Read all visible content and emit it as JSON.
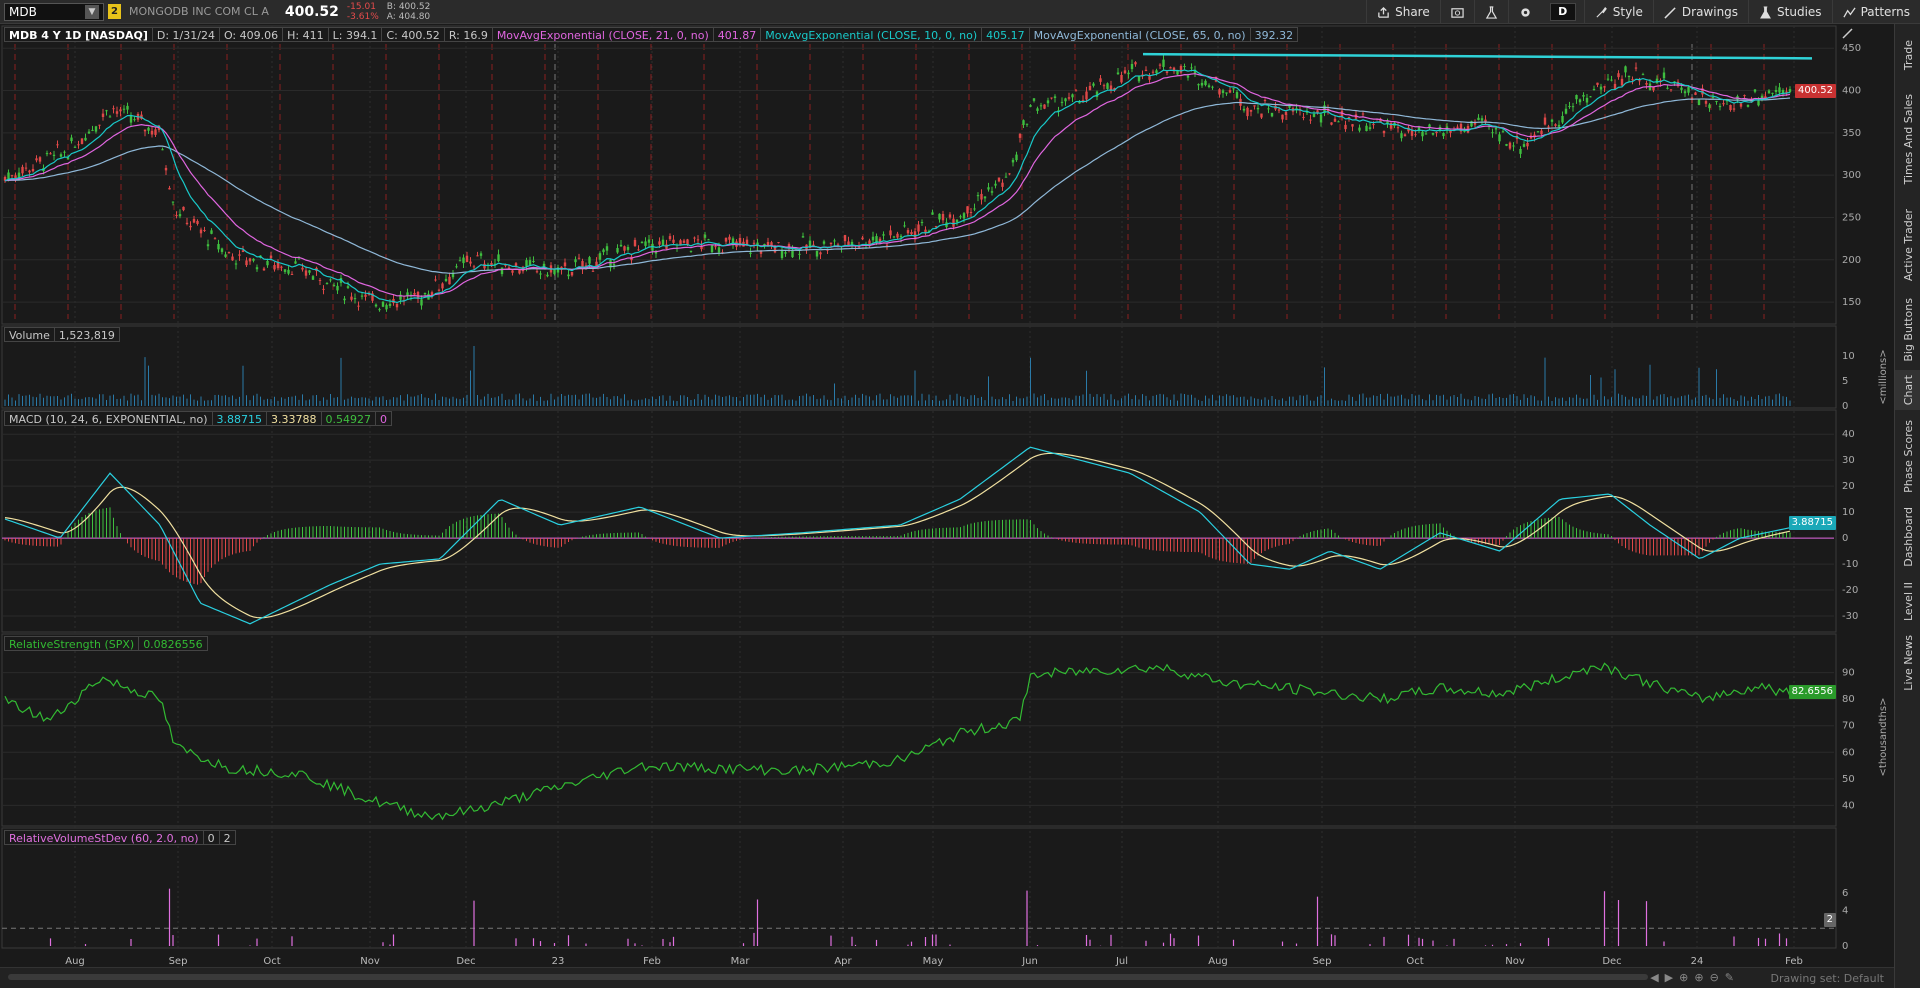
{
  "header": {
    "symbol": "MDB",
    "badge": "2",
    "company": "MONGODB INC COM CL A",
    "last": "400.52",
    "change": "-15.01",
    "change_pct": "-3.61%",
    "bid": "B: 400.52",
    "ask": "A: 404.80",
    "buttons": [
      {
        "label": "Share",
        "icon": "share-icon"
      },
      {
        "label": "",
        "icon": "snapshot-icon"
      },
      {
        "label": "",
        "icon": "flask-icon"
      },
      {
        "label": "",
        "icon": "gear-icon"
      },
      {
        "label": "D",
        "icon": ""
      },
      {
        "label": "Style",
        "icon": "style-icon"
      },
      {
        "label": "Drawings",
        "icon": "pencil-icon"
      },
      {
        "label": "Studies",
        "icon": "studies-icon"
      },
      {
        "label": "Patterns",
        "icon": "patterns-icon"
      }
    ]
  },
  "price_pane": {
    "title": "MDB 4 Y 1D [NASDAQ]",
    "date": "D: 1/31/24",
    "open": "O: 409.06",
    "high": "H: 411",
    "low": "L: 394.1",
    "close": "C: 400.52",
    "range": "R: 16.9",
    "ema21_label": "MovAvgExponential (CLOSE, 21, 0, no)",
    "ema21_val": "401.87",
    "ema10_label": "MovAvgExponential (CLOSE, 10, 0, no)",
    "ema10_val": "405.17",
    "ema65_label": "MovAvgExponential (CLOSE, 65, 0, no)",
    "ema65_val": "392.32",
    "last_tag": "400.52",
    "y_ticks": [
      "450",
      "400",
      "350",
      "300",
      "250",
      "200",
      "150"
    ]
  },
  "volume_pane": {
    "title": "Volume",
    "value": "1,523,819",
    "y_ticks": [
      "10",
      "5",
      "0"
    ],
    "unit": "<millions>"
  },
  "macd_pane": {
    "title": "MACD (10, 24, 6, EXPONENTIAL, no)",
    "v1": "3.88715",
    "v2": "3.33788",
    "v3": "0.54927",
    "v4": "0",
    "tag": "3.88715",
    "y_ticks": [
      "40",
      "30",
      "20",
      "10",
      "0",
      "-10",
      "-20",
      "-30"
    ]
  },
  "rs_pane": {
    "title": "RelativeStrength (SPX)",
    "value": "0.0826556",
    "tag": "82.6556",
    "y_ticks": [
      "90",
      "80",
      "70",
      "60",
      "50",
      "40"
    ],
    "unit": "<thousandths>"
  },
  "rvol_pane": {
    "title": "RelativeVolumeStDev (60, 2.0, no)",
    "v1": "0",
    "v2": "2",
    "tag": "2",
    "y_ticks": [
      "6",
      "4",
      "0"
    ]
  },
  "x_axis": [
    "Aug",
    "Sep",
    "Oct",
    "Nov",
    "Dec",
    "23",
    "Feb",
    "Mar",
    "Apr",
    "May",
    "Jun",
    "Jul",
    "Aug",
    "Sep",
    "Oct",
    "Nov",
    "Dec",
    "24",
    "Feb"
  ],
  "sidebar_tabs": [
    "Trade",
    "Times And Sales",
    "Active Trader",
    "Big Buttons",
    "Chart",
    "Phase Scores",
    "Dashboard",
    "Level II",
    "Live News"
  ],
  "footer": {
    "drawing_set": "Drawing set: Default"
  },
  "colors": {
    "bg": "#1a1a1a",
    "up": "#3fbf3f",
    "down": "#e04848",
    "ema10": "#19c9c9",
    "ema21": "#e066e0",
    "ema65": "#8fb8d8",
    "trendline": "#2fd3d8",
    "macd": "#2ad0e0",
    "signal": "#f0e0a0",
    "rs": "#33bb33",
    "rvol": "#e070e0"
  }
}
